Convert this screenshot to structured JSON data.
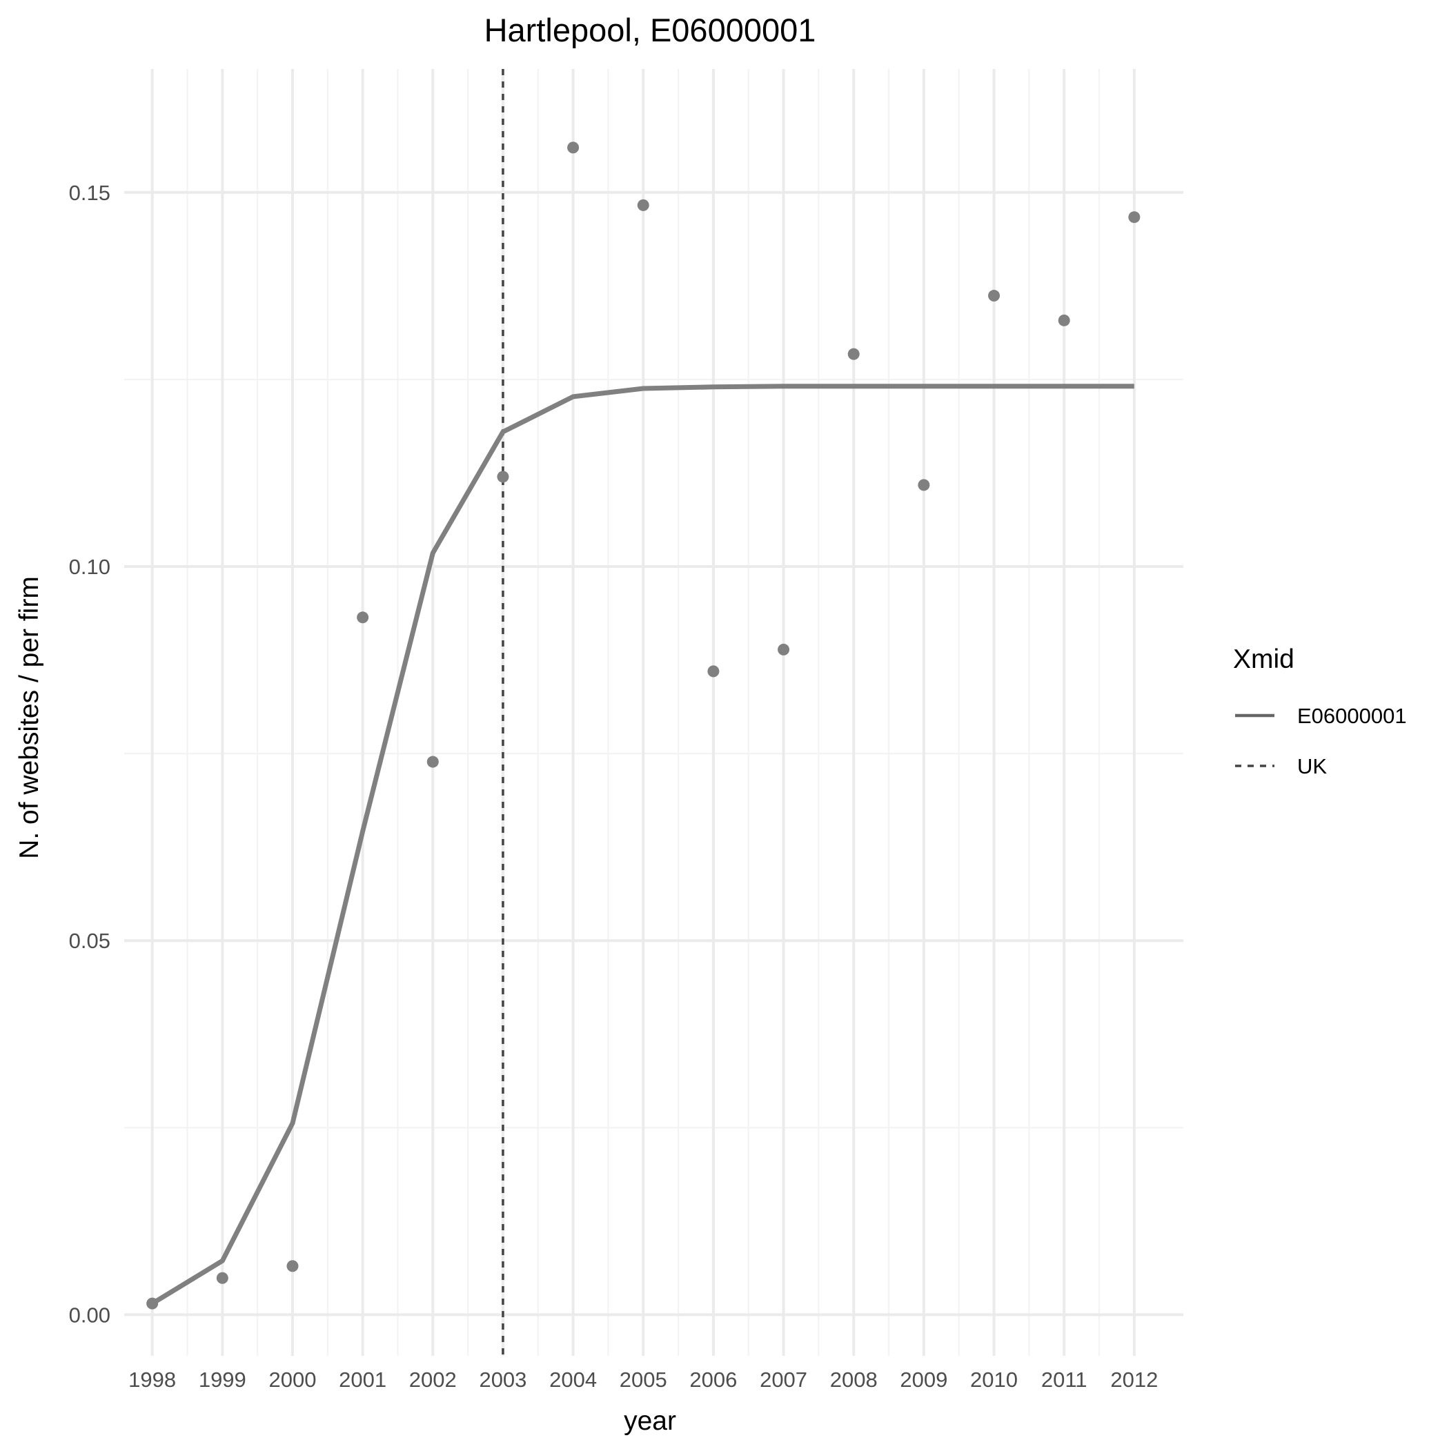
{
  "chart_data": {
    "type": "line",
    "title": "Hartlepool, E06000001",
    "xlabel": "year",
    "ylabel": "N. of websites / per firm",
    "x_ticks": [
      "1998",
      "1999",
      "2000",
      "2001",
      "2002",
      "2003",
      "2004",
      "2005",
      "2006",
      "2007",
      "2008",
      "2009",
      "2010",
      "2011",
      "2012"
    ],
    "y_ticks": [
      "0.00",
      "0.05",
      "0.10",
      "0.15"
    ],
    "xlim": [
      1997.6,
      2012.7
    ],
    "ylim": [
      -0.0055,
      0.1665
    ],
    "grid": true,
    "legend": {
      "title": "Xmid",
      "placement": "right",
      "entries": [
        {
          "label": "E06000001",
          "linetype": "solid",
          "color": "#666666"
        },
        {
          "label": "UK",
          "linetype": "dashed",
          "color": "#444444"
        }
      ]
    },
    "series": [
      {
        "name": "E06000001",
        "kind": "fitted-line",
        "color": "#808080",
        "x": [
          1998,
          1999,
          2000,
          2001,
          2002,
          2003,
          2004,
          2005,
          2006,
          2007,
          2008,
          2009,
          2010,
          2011,
          2012
        ],
        "values": [
          0.0015,
          0.0072,
          0.0256,
          0.0646,
          0.1018,
          0.118,
          0.1227,
          0.1238,
          0.124,
          0.1241,
          0.1241,
          0.1241,
          0.1241,
          0.1241,
          0.1241
        ]
      },
      {
        "name": "E06000001",
        "kind": "observed-points",
        "color": "#808080",
        "x": [
          1998,
          1999,
          2000,
          2001,
          2002,
          2003,
          2004,
          2005,
          2006,
          2007,
          2008,
          2009,
          2010,
          2011,
          2012
        ],
        "values": [
          0.0015,
          0.0049,
          0.0065,
          0.0932,
          0.0739,
          0.112,
          0.156,
          0.1483,
          0.086,
          0.0889,
          0.1284,
          0.1109,
          0.1362,
          0.1329,
          0.1467
        ]
      },
      {
        "name": "UK",
        "kind": "vline",
        "color": "#444444",
        "x": 2003
      }
    ]
  }
}
